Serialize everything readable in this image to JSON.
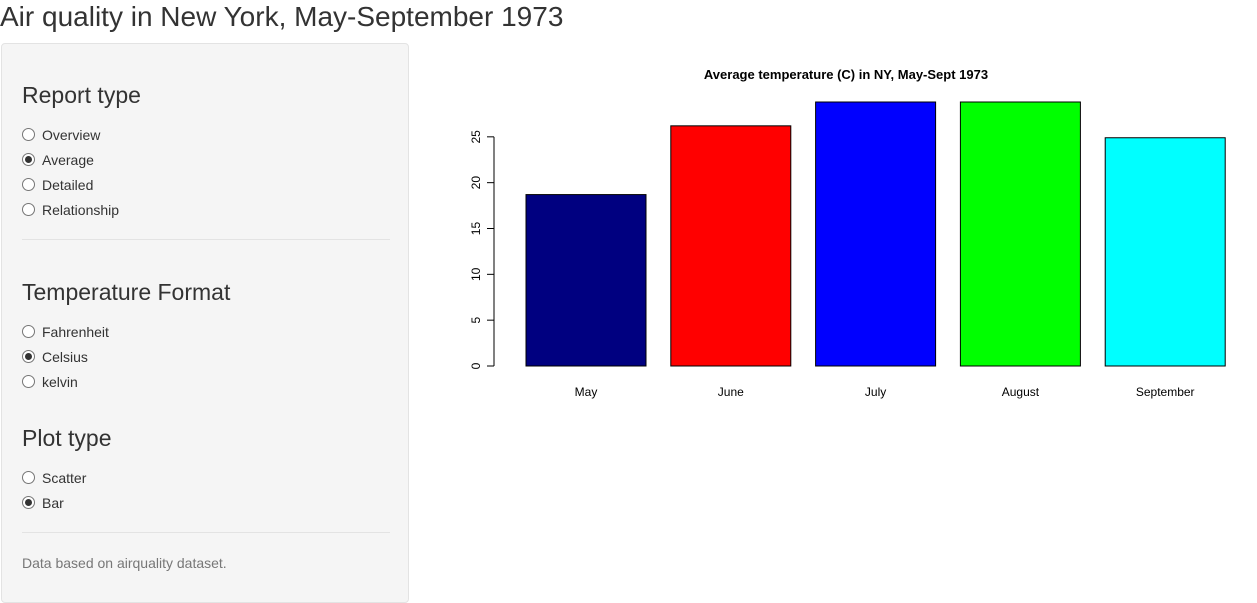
{
  "page": {
    "title": "Air quality in New York, May-September 1973"
  },
  "sidebar": {
    "report_type": {
      "heading": "Report type",
      "options": [
        "Overview",
        "Average",
        "Detailed",
        "Relationship"
      ],
      "selected": "Average"
    },
    "temperature_format": {
      "heading": "Temperature Format",
      "options": [
        "Fahrenheit",
        "Celsius",
        "kelvin"
      ],
      "selected": "Celsius"
    },
    "plot_type": {
      "heading": "Plot type",
      "options": [
        "Scatter",
        "Bar"
      ],
      "selected": "Bar"
    },
    "footnote": "Data based on airquality dataset."
  },
  "chart_data": {
    "type": "bar",
    "title": "Average temperature (C) in NY, May-Sept 1973",
    "xlabel": "",
    "ylabel": "",
    "categories": [
      "May",
      "June",
      "July",
      "August",
      "September"
    ],
    "values": [
      18.7,
      26.2,
      28.8,
      28.8,
      24.9
    ],
    "colors": [
      "#000080",
      "#ff0000",
      "#0000ff",
      "#00ff00",
      "#00ffff"
    ],
    "yticks": [
      0,
      5,
      10,
      15,
      20,
      25
    ],
    "ylim": [
      0,
      28.8
    ],
    "grid": false
  }
}
